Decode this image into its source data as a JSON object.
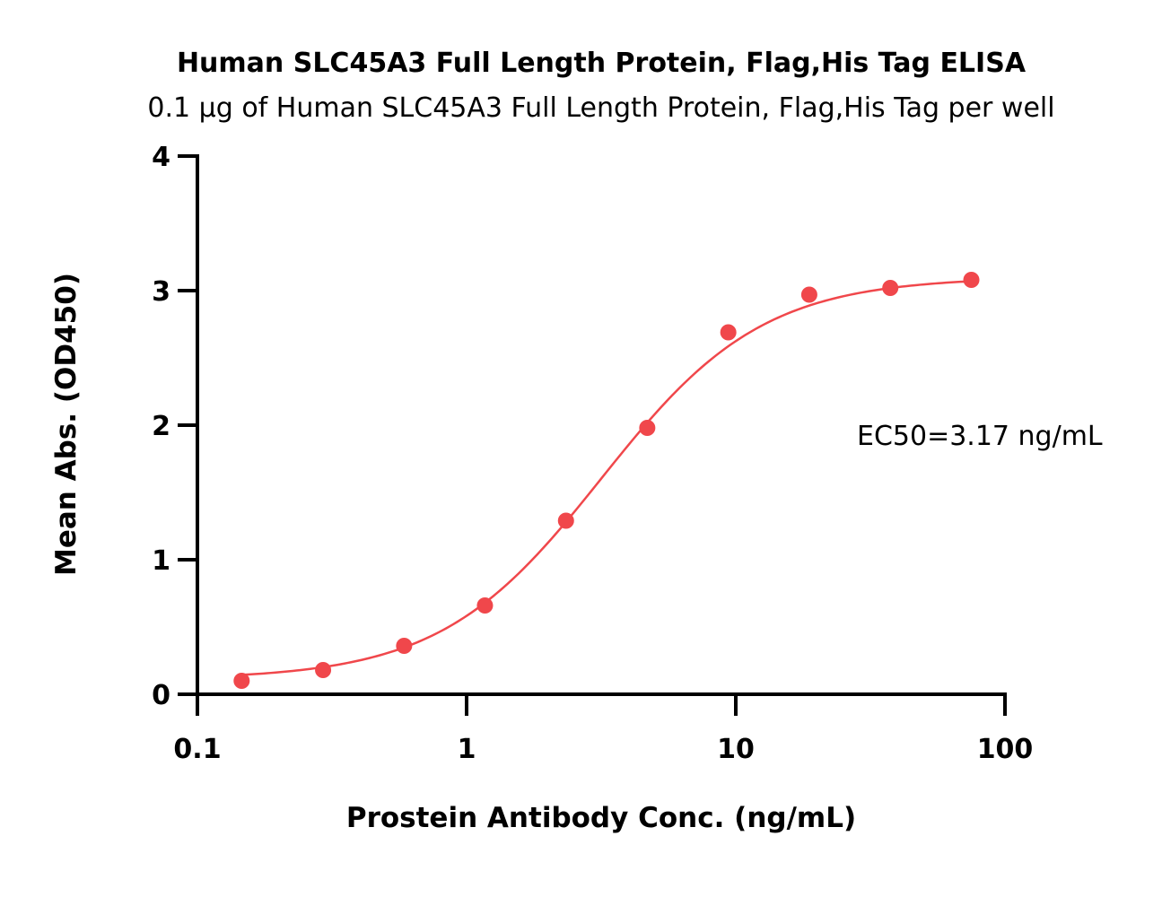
{
  "chart_data": {
    "type": "scatter",
    "title": "Human SLC45A3 Full Length Protein, Flag,His Tag ELISA",
    "subtitle": "0.1 µg of Human SLC45A3 Full Length Protein, Flag,His Tag per well",
    "xlabel": "Prostein Antibody Conc. (ng/mL)",
    "ylabel": "Mean Abs. (OD450)",
    "x_scale": "log",
    "xlim": [
      0.1,
      100
    ],
    "ylim": [
      0,
      4
    ],
    "x_ticks": [
      0.1,
      1,
      10,
      100
    ],
    "x_tick_labels": [
      "0.1",
      "1",
      "10",
      "100"
    ],
    "y_ticks": [
      0,
      1,
      2,
      3,
      4
    ],
    "y_tick_labels": [
      "0",
      "1",
      "2",
      "3",
      "4"
    ],
    "grid": false,
    "annotation": "EC50=3.17 ng/mL",
    "color": "#f0474b",
    "series": [
      {
        "x": [
          0.146,
          0.293,
          0.586,
          1.17,
          2.34,
          4.69,
          9.38,
          18.75,
          37.5,
          75
        ],
        "y": [
          0.1,
          0.18,
          0.36,
          0.66,
          1.29,
          1.98,
          2.69,
          2.97,
          3.02,
          3.08
        ]
      }
    ],
    "fit_curve": {
      "model": "4PL",
      "bottom": 0.11,
      "top": 3.1,
      "ec50": 3.17,
      "hill": 1.45
    }
  }
}
